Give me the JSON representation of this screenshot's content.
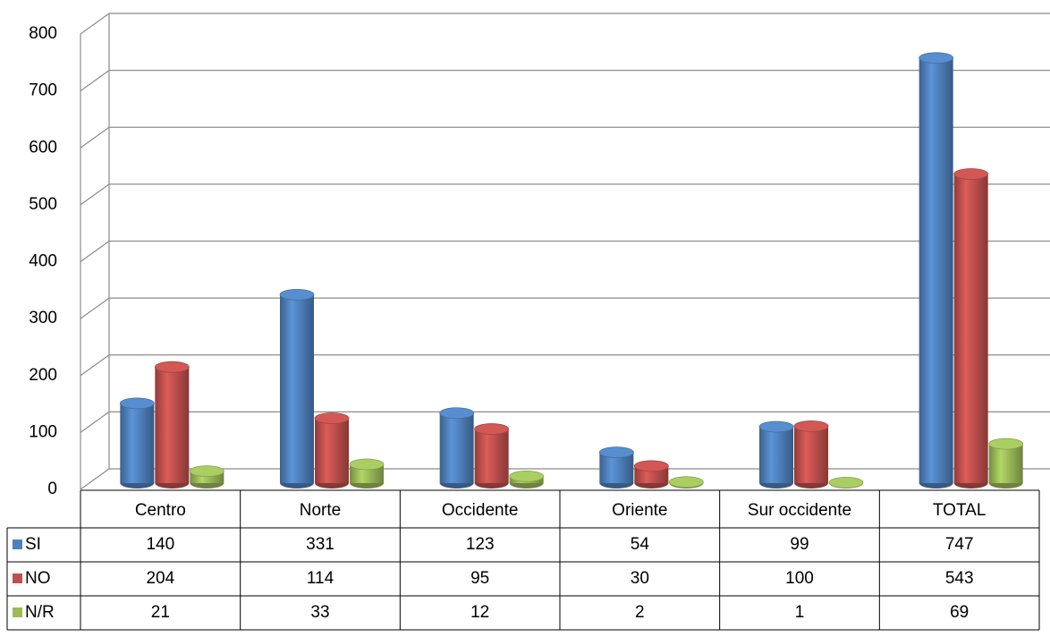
{
  "chart_data": {
    "type": "bar",
    "categories": [
      "Centro",
      "Norte",
      "Occidente",
      "Oriente",
      "Sur occidente",
      "TOTAL"
    ],
    "series": [
      {
        "name": "SI",
        "color": "#4f81bd",
        "values": [
          140,
          331,
          123,
          54,
          99,
          747
        ]
      },
      {
        "name": "NO",
        "color": "#c0504d",
        "values": [
          204,
          114,
          95,
          30,
          100,
          543
        ]
      },
      {
        "name": "N/R",
        "color": "#9bbb59",
        "values": [
          21,
          33,
          12,
          2,
          1,
          69
        ]
      }
    ],
    "ylim": [
      0,
      800
    ],
    "yticks": [
      0,
      100,
      200,
      300,
      400,
      500,
      600,
      700,
      800
    ],
    "grid": true
  }
}
